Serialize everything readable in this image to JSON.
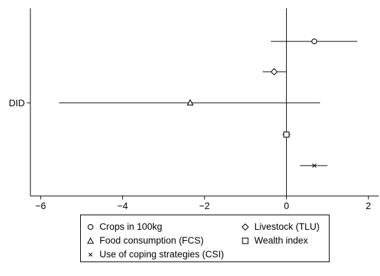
{
  "chart_data": {
    "type": "scatter",
    "subtype": "coefficient-plot",
    "y_category_label": "DID",
    "xlim": [
      -6.25,
      2.25
    ],
    "xticks": [
      -6,
      -4,
      -2,
      0,
      2
    ],
    "xtick_labels": [
      "−6",
      "−4",
      "−2",
      "0",
      "2"
    ],
    "reference_line_x": 0,
    "grid": false,
    "legend_position": "bottom",
    "series": [
      {
        "name": "Crops in 100kg",
        "marker": "circle",
        "estimate": 0.68,
        "ci": [
          -0.38,
          1.73
        ]
      },
      {
        "name": "Livestock (TLU)",
        "marker": "diamond",
        "estimate": -0.3,
        "ci": [
          -0.58,
          0.0
        ]
      },
      {
        "name": "Food consumption (FCS)",
        "marker": "triangle",
        "estimate": -2.35,
        "ci": [
          -5.55,
          0.82
        ]
      },
      {
        "name": "Wealth index",
        "marker": "square",
        "estimate": 0.0,
        "ci": [
          -0.1,
          0.1
        ]
      },
      {
        "name": "Use of coping strategies (CSI)",
        "marker": "x",
        "estimate": 0.68,
        "ci": [
          0.33,
          1.0
        ]
      }
    ]
  }
}
